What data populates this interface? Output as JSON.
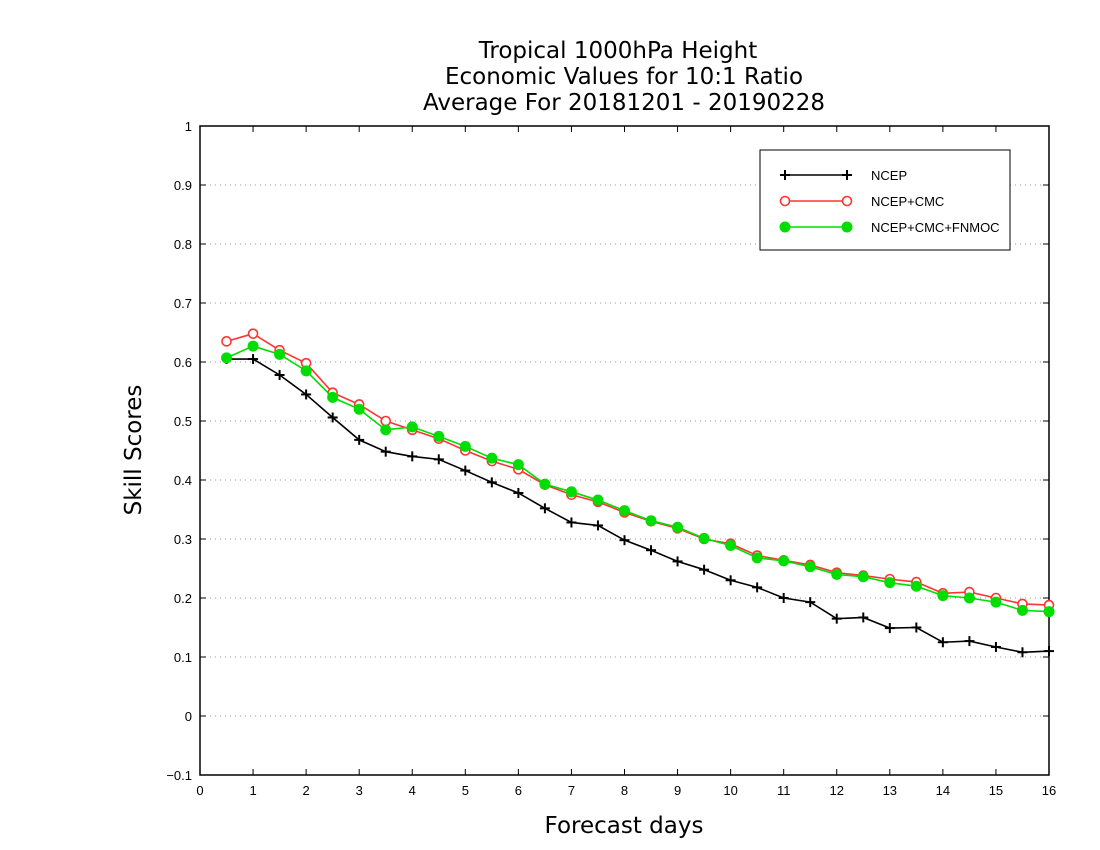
{
  "chart_data": {
    "type": "line",
    "title": [
      "Tropical 1000hPa Height",
      "Economic Values for 10:1 Ratio",
      "Average For 20181201 - 20190228"
    ],
    "xlabel": "Forecast days",
    "ylabel": "Skill Scores",
    "xlim": [
      0,
      16
    ],
    "ylim": [
      -0.1,
      1
    ],
    "xticks": [
      "0",
      "1",
      "2",
      "3",
      "4",
      "5",
      "6",
      "7",
      "8",
      "9",
      "10",
      "11",
      "12",
      "13",
      "14",
      "15",
      "16"
    ],
    "yticks": [
      "−0.1",
      "0",
      "0.1",
      "0.2",
      "0.3",
      "0.4",
      "0.5",
      "0.6",
      "0.7",
      "0.8",
      "0.9",
      "1"
    ],
    "ytick_values": [
      -0.1,
      0,
      0.1,
      0.2,
      0.3,
      0.4,
      0.5,
      0.6,
      0.7,
      0.8,
      0.9,
      1
    ],
    "grid": "horizontal dotted",
    "legend_position": "top-right",
    "x": [
      0.5,
      1,
      1.5,
      2,
      2.5,
      3,
      3.5,
      4,
      4.5,
      5,
      5.5,
      6,
      6.5,
      7,
      7.5,
      8,
      8.5,
      9,
      9.5,
      10,
      10.5,
      11,
      11.5,
      12,
      12.5,
      13,
      13.5,
      14,
      14.5,
      15,
      15.5,
      16
    ],
    "series": [
      {
        "name": "NCEP",
        "color": "#000000",
        "marker": "plus",
        "values": [
          0.605,
          0.605,
          0.578,
          0.545,
          0.506,
          0.468,
          0.448,
          0.44,
          0.435,
          0.416,
          0.396,
          0.378,
          0.352,
          0.328,
          0.323,
          0.298,
          0.281,
          0.262,
          0.248,
          0.23,
          0.218,
          0.2,
          0.193,
          0.165,
          0.167,
          0.149,
          0.15,
          0.125,
          0.127,
          0.117,
          0.108,
          0.11
        ]
      },
      {
        "name": "NCEP+CMC",
        "color": "#ff3333",
        "marker": "open-circle",
        "values": [
          0.635,
          0.648,
          0.62,
          0.598,
          0.548,
          0.528,
          0.5,
          0.485,
          0.47,
          0.45,
          0.432,
          0.418,
          0.392,
          0.375,
          0.363,
          0.345,
          0.33,
          0.318,
          0.3,
          0.292,
          0.272,
          0.264,
          0.256,
          0.243,
          0.238,
          0.232,
          0.227,
          0.208,
          0.21,
          0.2,
          0.19,
          0.188
        ]
      },
      {
        "name": "NCEP+CMC+FNMOC",
        "color": "#00dd00",
        "marker": "filled-circle",
        "values": [
          0.607,
          0.627,
          0.613,
          0.585,
          0.54,
          0.52,
          0.485,
          0.49,
          0.474,
          0.457,
          0.437,
          0.426,
          0.393,
          0.38,
          0.366,
          0.348,
          0.331,
          0.32,
          0.301,
          0.289,
          0.268,
          0.263,
          0.253,
          0.24,
          0.236,
          0.226,
          0.22,
          0.204,
          0.2,
          0.193,
          0.179,
          0.177
        ]
      }
    ]
  }
}
